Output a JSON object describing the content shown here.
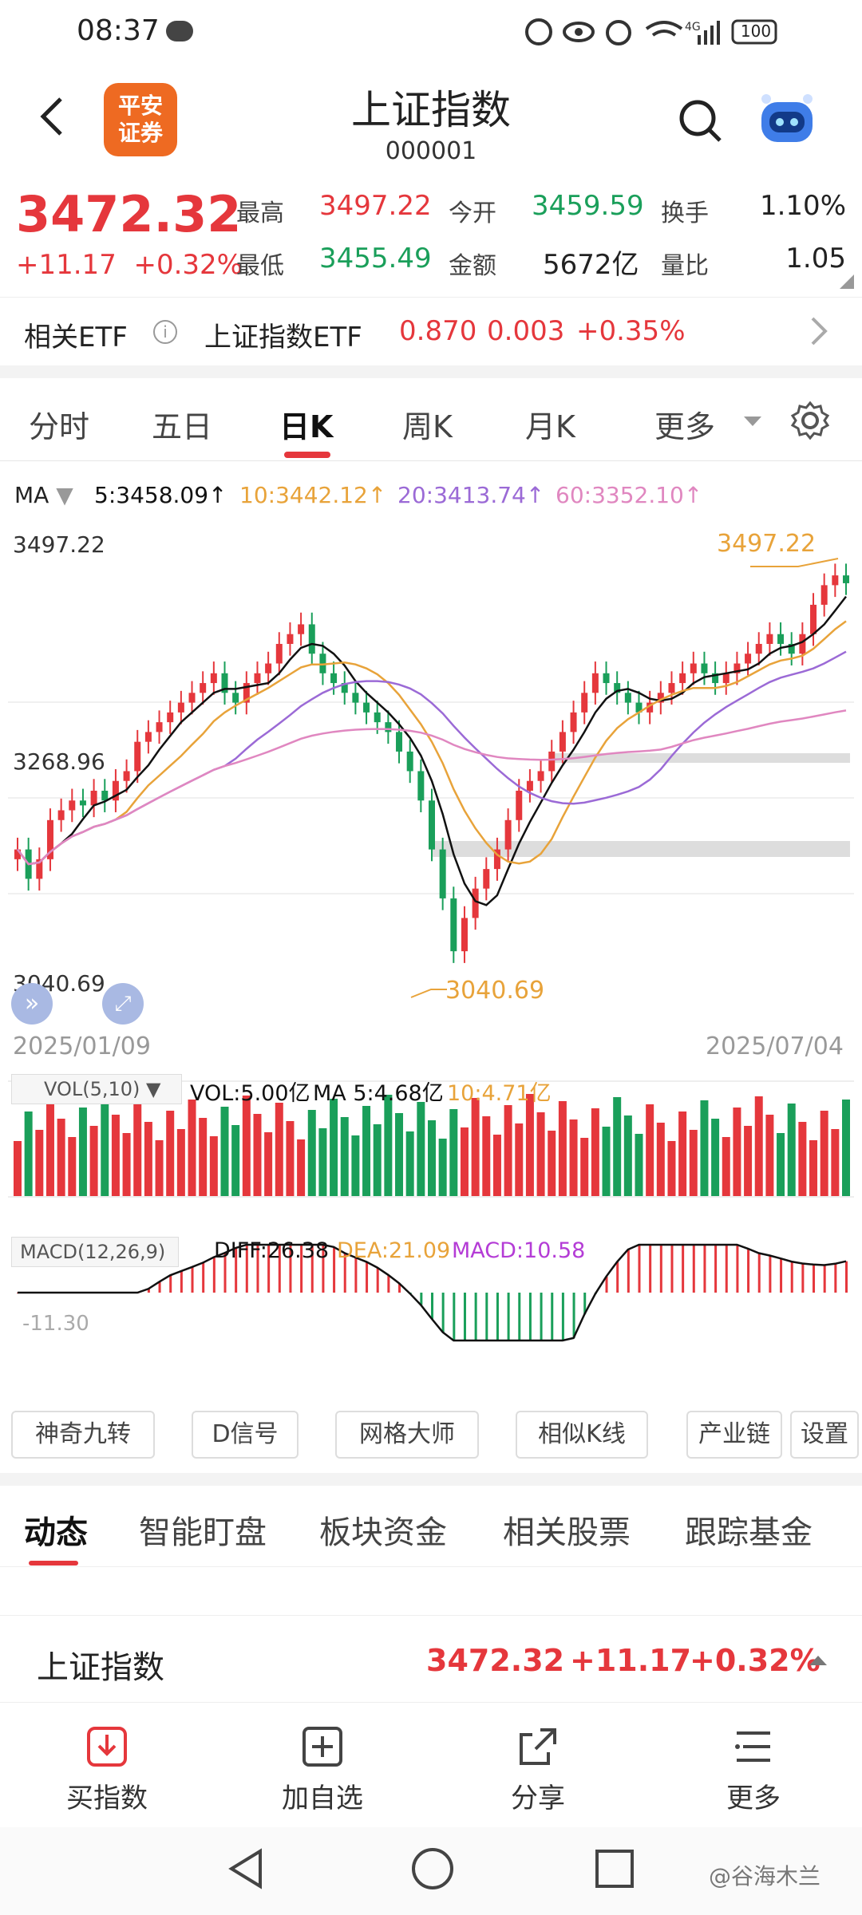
{
  "status": {
    "time": "08:37",
    "battery": "100",
    "signal": "4G"
  },
  "header": {
    "logo_line1": "平安",
    "logo_line2": "证券",
    "title": "上证指数",
    "code": "000001"
  },
  "quote": {
    "price": "3472.32",
    "change": "+11.17",
    "change_pct": "+0.32%",
    "high_label": "最高",
    "high": "3497.22",
    "low_label": "最低",
    "low": "3455.49",
    "open_label": "今开",
    "open": "3459.59",
    "amount_label": "金额",
    "amount": "5672亿",
    "turnover_label": "换手",
    "turnover": "1.10%",
    "volratio_label": "量比",
    "volratio": "1.05"
  },
  "etf": {
    "label": "相关ETF",
    "name": "上证指数ETF",
    "price": "0.870",
    "change": "0.003",
    "pct": "+0.35%"
  },
  "tabs": [
    "分时",
    "五日",
    "日K",
    "周K",
    "月K",
    "更多"
  ],
  "ma": {
    "label": "MA",
    "ma5": "5:3458.09↑",
    "ma10": "10:3442.12↑",
    "ma20": "20:3413.74↑",
    "ma60": "60:3352.10↑"
  },
  "chart_labels": {
    "top": "3497.22",
    "mid": "3268.96",
    "bottom": "3040.69",
    "high_mark": "3497.22",
    "low_mark": "3040.69",
    "start_date": "2025/01/09",
    "end_date": "2025/07/04"
  },
  "vol": {
    "label": "VOL(5,10)",
    "vol": "VOL:5.00亿",
    "ma5": "MA 5:4.68亿",
    "ma10": "10:4.71亿"
  },
  "macd": {
    "label": "MACD(12,26,9)",
    "diff": "DIFF:26.38",
    "dea": "DEA:21.09",
    "macd": "MACD:10.58",
    "axis": "-11.30"
  },
  "tools": [
    "神奇九转",
    "D信号",
    "网格大师",
    "相似K线",
    "产业链",
    "设置"
  ],
  "bottom_tabs": [
    "动态",
    "智能盯盘",
    "板块资金",
    "相关股票",
    "跟踪基金"
  ],
  "index_row": {
    "name": "上证指数",
    "price": "3472.32",
    "change": "+11.17",
    "pct": "+0.32%"
  },
  "actions": [
    "买指数",
    "加自选",
    "分享",
    "更多"
  ],
  "watermark": "@谷海木兰",
  "colors": {
    "up": "#e5373c",
    "down": "#1a9f5a",
    "ma5": "#111111",
    "ma10": "#e8a33a",
    "ma20": "#9b6ad6",
    "ma60": "#e087c0"
  },
  "chart_data": {
    "type": "candlestick",
    "x_start": "2025/01/09",
    "x_end": "2025/07/04",
    "ylim": [
      3040.69,
      3497.22
    ],
    "close_series_approx": [
      3200,
      3170,
      3190,
      3230,
      3240,
      3250,
      3245,
      3260,
      3250,
      3270,
      3280,
      3310,
      3320,
      3330,
      3340,
      3350,
      3360,
      3370,
      3380,
      3360,
      3350,
      3370,
      3380,
      3390,
      3410,
      3420,
      3430,
      3400,
      3380,
      3370,
      3360,
      3350,
      3340,
      3330,
      3320,
      3300,
      3280,
      3250,
      3200,
      3150,
      3096,
      3130,
      3160,
      3180,
      3200,
      3230,
      3260,
      3270,
      3280,
      3300,
      3320,
      3340,
      3360,
      3380,
      3370,
      3360,
      3350,
      3340,
      3350,
      3360,
      3370,
      3380,
      3390,
      3380,
      3370,
      3380,
      3390,
      3400,
      3410,
      3420,
      3410,
      3400,
      3420,
      3450,
      3470,
      3480,
      3472
    ]
  }
}
